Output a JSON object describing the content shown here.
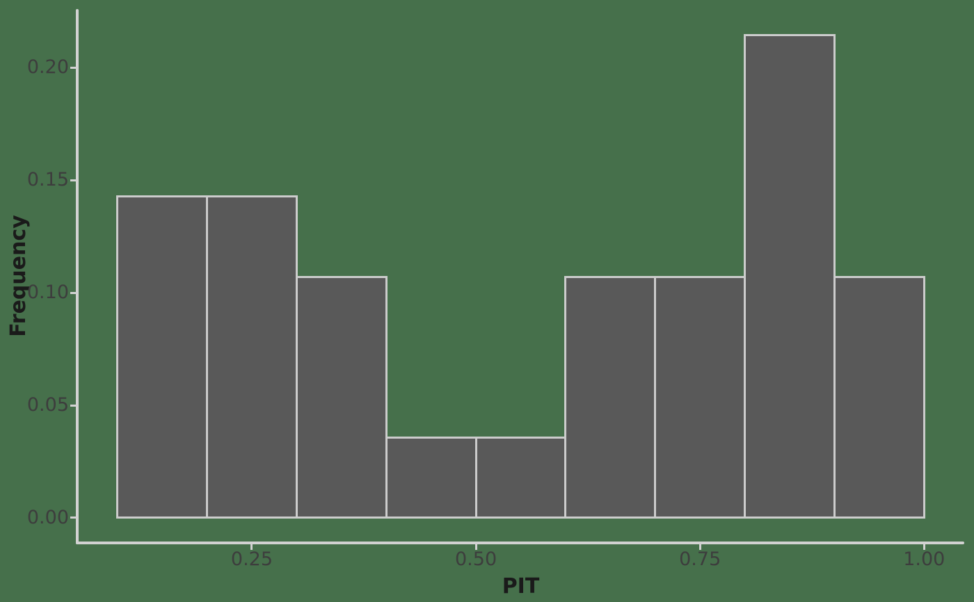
{
  "figure": {
    "background_color": "#46704B",
    "bar_fill_color": "#595959",
    "bar_stroke_color": "#CCCCCC",
    "axis_line_color": "#D2D2D2",
    "tick_label_color": "#3D3D3D",
    "axis_title_color": "#1A1A1A"
  },
  "chart_data": {
    "type": "bar",
    "subtype": "histogram",
    "title": "",
    "xlabel": "PIT",
    "ylabel": "Frequency",
    "bin_width": 0.1,
    "bin_edges": [
      0.1,
      0.2,
      0.3,
      0.4,
      0.5,
      0.6,
      0.7,
      0.8,
      0.9,
      1.0
    ],
    "values": [
      0.1429,
      0.1429,
      0.1071,
      0.0357,
      0.0357,
      0.1071,
      0.1071,
      0.2143,
      0.1071
    ],
    "xlim": [
      0.056,
      1.044
    ],
    "ylim": [
      -0.0105,
      0.2257
    ],
    "x_ticks": [
      {
        "value": 0.25,
        "label": "0.25"
      },
      {
        "value": 0.5,
        "label": "0.50"
      },
      {
        "value": 0.75,
        "label": "0.75"
      },
      {
        "value": 1.0,
        "label": "1.00"
      }
    ],
    "y_ticks": [
      {
        "value": 0.0,
        "label": "0.00"
      },
      {
        "value": 0.05,
        "label": "0.05"
      },
      {
        "value": 0.1,
        "label": "0.10"
      },
      {
        "value": 0.15,
        "label": "0.15"
      },
      {
        "value": 0.2,
        "label": "0.20"
      }
    ],
    "grid": false,
    "legend": false
  }
}
